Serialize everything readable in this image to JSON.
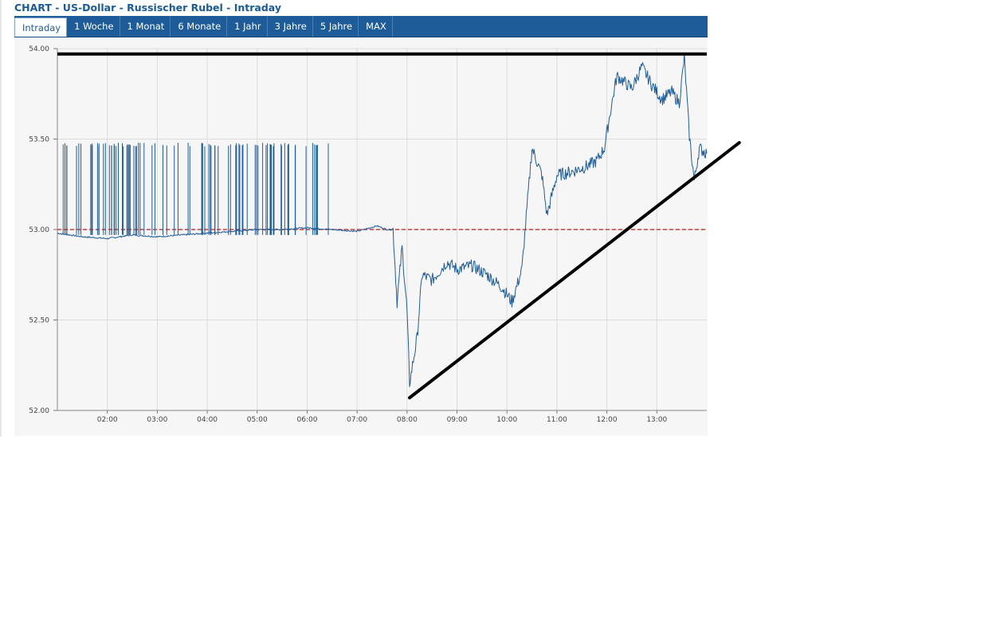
{
  "title": "CHART - US-Dollar - Russischer Rubel - Intraday",
  "tabs": [
    "Intraday",
    "1 Woche",
    "1 Monat",
    "6 Monate",
    "1 Jahr",
    "3 Jahre",
    "5 Jahre",
    "MAX"
  ],
  "active_tab": "Intraday",
  "colors": {
    "series": "#1f5d99",
    "reference": "#b02020",
    "trend": "#000000",
    "tab_bar": "#1d5c98",
    "title": "#1a5a96"
  },
  "chart_data": {
    "type": "line",
    "xlim": [
      1.0,
      14.0
    ],
    "ylim": [
      52.0,
      54.0
    ],
    "x_ticks": [
      2,
      3,
      4,
      5,
      6,
      7,
      8,
      9,
      10,
      11,
      12,
      13
    ],
    "x_tick_labels": [
      "02:00",
      "03:00",
      "04:00",
      "05:00",
      "06:00",
      "07:00",
      "08:00",
      "09:00",
      "10:00",
      "11:00",
      "12:00",
      "13:00"
    ],
    "y_ticks": [
      52.0,
      52.5,
      53.0,
      53.5,
      54.0
    ],
    "y_tick_labels": [
      "52.00",
      "52.50",
      "53.00",
      "53.50",
      "54.00"
    ],
    "grid": true,
    "series": [
      {
        "x": [
          1.0,
          1.5,
          2.0,
          2.5,
          3.0,
          3.5,
          4.0,
          4.5,
          5.0,
          5.5,
          6.0,
          6.5,
          7.0,
          7.4,
          7.6,
          7.72,
          7.8,
          7.9,
          8.0,
          8.05,
          8.2,
          8.3,
          8.5,
          8.8,
          9.0,
          9.3,
          9.6,
          9.9,
          10.1,
          10.3,
          10.5,
          10.7,
          10.8,
          11.0,
          11.3,
          11.6,
          11.8,
          11.95,
          12.05,
          12.2,
          12.5,
          12.7,
          12.9,
          13.1,
          13.3,
          13.45,
          13.55,
          13.65,
          13.75,
          13.85,
          14.0
        ],
        "y": [
          52.98,
          52.96,
          52.95,
          52.97,
          52.96,
          52.97,
          52.98,
          52.99,
          53.0,
          53.0,
          53.01,
          53.0,
          52.99,
          53.02,
          53.0,
          53.0,
          52.6,
          52.9,
          52.55,
          52.15,
          52.4,
          52.75,
          52.72,
          52.82,
          52.78,
          52.8,
          52.75,
          52.68,
          52.6,
          52.78,
          53.45,
          53.3,
          53.08,
          53.3,
          53.32,
          53.35,
          53.38,
          53.45,
          53.62,
          53.85,
          53.78,
          53.9,
          53.8,
          53.72,
          53.76,
          53.7,
          53.95,
          53.52,
          53.27,
          53.45,
          53.42
        ]
      }
    ],
    "spike_band": {
      "x_start": 1.1,
      "x_end": 6.55,
      "y_top": 53.48,
      "y_bottom": 53.0
    },
    "reference_line": {
      "y": 53.0,
      "style": "dashed"
    },
    "annotations": [
      {
        "type": "horizontal_line",
        "y": 53.97,
        "x_start": 1.0,
        "x_end": 14.0
      },
      {
        "type": "trend_line",
        "x1": 8.05,
        "y1": 52.07,
        "x2": 14.65,
        "y2": 53.48
      }
    ]
  }
}
